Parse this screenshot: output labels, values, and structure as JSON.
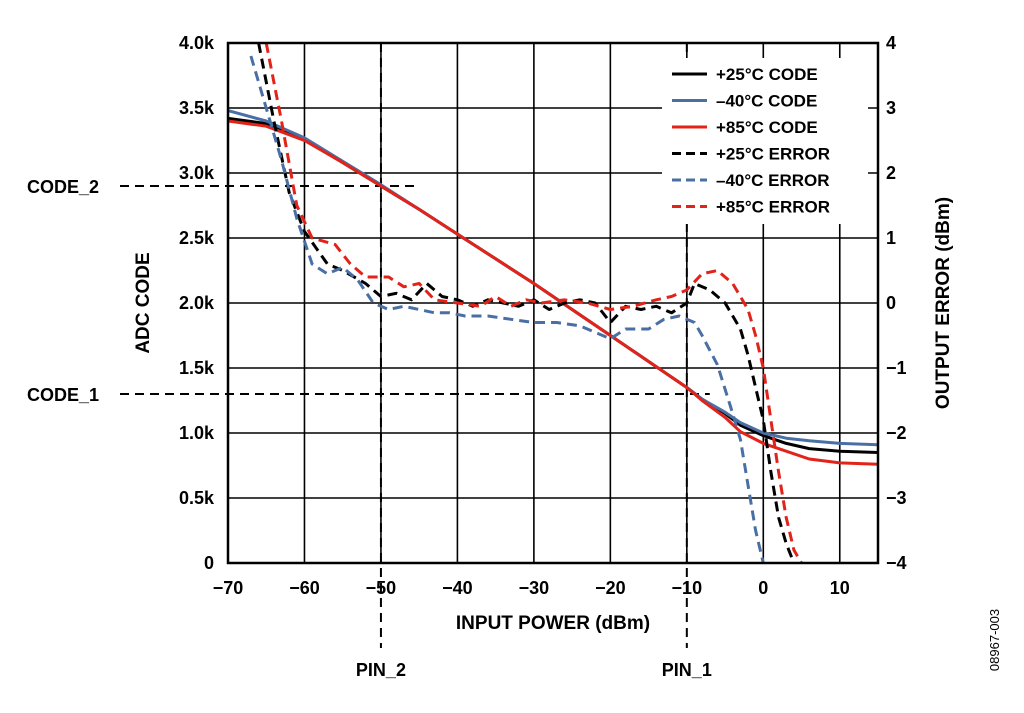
{
  "chart_data": {
    "type": "line",
    "xlabel": "INPUT POWER (dBm)",
    "ylabel_left": "ADC CODE",
    "ylabel_right": "OUTPUT ERROR (dBm)",
    "x_range": [
      -70,
      15
    ],
    "y_left_range": [
      0,
      4000
    ],
    "y_right_range": [
      -4,
      4
    ],
    "x_ticks": [
      {
        "v": -70,
        "label": "−70"
      },
      {
        "v": -60,
        "label": "−60"
      },
      {
        "v": -50,
        "label": "−50"
      },
      {
        "v": -40,
        "label": "−40"
      },
      {
        "v": -30,
        "label": "−30"
      },
      {
        "v": -20,
        "label": "−20"
      },
      {
        "v": -10,
        "label": "−10"
      },
      {
        "v": 0,
        "label": "0"
      },
      {
        "v": 10,
        "label": "10"
      }
    ],
    "y_left_ticks": [
      {
        "v": 0,
        "label": "0"
      },
      {
        "v": 500,
        "label": "0.5k"
      },
      {
        "v": 1000,
        "label": "1.0k"
      },
      {
        "v": 1500,
        "label": "1.5k"
      },
      {
        "v": 2000,
        "label": "2.0k"
      },
      {
        "v": 2500,
        "label": "2.5k"
      },
      {
        "v": 3000,
        "label": "3.0k"
      },
      {
        "v": 3500,
        "label": "3.5k"
      },
      {
        "v": 4000,
        "label": "4.0k"
      }
    ],
    "y_right_ticks": [
      {
        "v": -4,
        "label": "−4"
      },
      {
        "v": -3,
        "label": "−3"
      },
      {
        "v": -2,
        "label": "−2"
      },
      {
        "v": -1,
        "label": "−1"
      },
      {
        "v": 0,
        "label": "0"
      },
      {
        "v": 1,
        "label": "1"
      },
      {
        "v": 2,
        "label": "2"
      },
      {
        "v": 3,
        "label": "3"
      },
      {
        "v": 4,
        "label": "4"
      }
    ],
    "grid": true,
    "legend_position": "top-right",
    "series": [
      {
        "name": "+25°C CODE",
        "axis": "left",
        "style": "solid",
        "color": "#000000",
        "points": [
          [
            -70,
            3420
          ],
          [
            -65,
            3380
          ],
          [
            -60,
            3260
          ],
          [
            -55,
            3080
          ],
          [
            -50,
            2900
          ],
          [
            -45,
            2720
          ],
          [
            -40,
            2530
          ],
          [
            -35,
            2340
          ],
          [
            -30,
            2150
          ],
          [
            -25,
            1950
          ],
          [
            -20,
            1750
          ],
          [
            -15,
            1550
          ],
          [
            -10,
            1350
          ],
          [
            -8,
            1260
          ],
          [
            -5,
            1150
          ],
          [
            -3,
            1060
          ],
          [
            0,
            980
          ],
          [
            3,
            920
          ],
          [
            6,
            880
          ],
          [
            10,
            860
          ],
          [
            15,
            850
          ]
        ]
      },
      {
        "name": "–40°C CODE",
        "axis": "left",
        "style": "solid",
        "color": "#4a6fa5",
        "points": [
          [
            -70,
            3480
          ],
          [
            -65,
            3400
          ],
          [
            -60,
            3270
          ],
          [
            -55,
            3090
          ],
          [
            -50,
            2910
          ],
          [
            -45,
            2720
          ],
          [
            -40,
            2530
          ],
          [
            -35,
            2340
          ],
          [
            -30,
            2150
          ],
          [
            -25,
            1950
          ],
          [
            -20,
            1750
          ],
          [
            -15,
            1550
          ],
          [
            -10,
            1350
          ],
          [
            -8,
            1260
          ],
          [
            -5,
            1160
          ],
          [
            -3,
            1080
          ],
          [
            0,
            1000
          ],
          [
            3,
            960
          ],
          [
            6,
            940
          ],
          [
            10,
            920
          ],
          [
            15,
            910
          ]
        ]
      },
      {
        "name": "+85°C CODE",
        "axis": "left",
        "style": "solid",
        "color": "#e2231a",
        "points": [
          [
            -70,
            3400
          ],
          [
            -65,
            3360
          ],
          [
            -60,
            3250
          ],
          [
            -55,
            3080
          ],
          [
            -50,
            2900
          ],
          [
            -45,
            2720
          ],
          [
            -40,
            2530
          ],
          [
            -35,
            2340
          ],
          [
            -30,
            2150
          ],
          [
            -25,
            1950
          ],
          [
            -20,
            1750
          ],
          [
            -15,
            1550
          ],
          [
            -10,
            1350
          ],
          [
            -8,
            1250
          ],
          [
            -5,
            1120
          ],
          [
            -3,
            1010
          ],
          [
            0,
            920
          ],
          [
            3,
            860
          ],
          [
            6,
            800
          ],
          [
            10,
            770
          ],
          [
            15,
            760
          ]
        ]
      },
      {
        "name": "+25°C ERROR",
        "axis": "right",
        "style": "dashed",
        "color": "#000000",
        "points": [
          [
            -66,
            4
          ],
          [
            -64,
            2.8
          ],
          [
            -62,
            1.7
          ],
          [
            -60,
            1.1
          ],
          [
            -57,
            0.6
          ],
          [
            -55,
            0.5
          ],
          [
            -52,
            0.3
          ],
          [
            -50,
            0.1
          ],
          [
            -48,
            0.15
          ],
          [
            -46,
            0.05
          ],
          [
            -44,
            0.3
          ],
          [
            -42,
            0.1
          ],
          [
            -40,
            0.05
          ],
          [
            -38,
            -0.05
          ],
          [
            -36,
            0.05
          ],
          [
            -34,
            0.0
          ],
          [
            -32,
            -0.05
          ],
          [
            -30,
            0.05
          ],
          [
            -28,
            -0.1
          ],
          [
            -26,
            0.0
          ],
          [
            -24,
            0.05
          ],
          [
            -22,
            0.0
          ],
          [
            -20,
            -0.3
          ],
          [
            -18,
            -0.05
          ],
          [
            -16,
            -0.1
          ],
          [
            -14,
            -0.05
          ],
          [
            -12,
            -0.15
          ],
          [
            -10,
            0.0
          ],
          [
            -9,
            0.3
          ],
          [
            -7,
            0.2
          ],
          [
            -5,
            0.0
          ],
          [
            -3,
            -0.4
          ],
          [
            -2,
            -0.8
          ],
          [
            -1,
            -1.3
          ],
          [
            0,
            -1.8
          ],
          [
            1,
            -2.6
          ],
          [
            2,
            -3.3
          ],
          [
            3,
            -3.7
          ],
          [
            4,
            -4.0
          ]
        ]
      },
      {
        "name": "–40°C ERROR",
        "axis": "right",
        "style": "dashed",
        "color": "#4a6fa5",
        "points": [
          [
            -67,
            3.8
          ],
          [
            -65,
            3.0
          ],
          [
            -63,
            2.2
          ],
          [
            -61,
            1.3
          ],
          [
            -59,
            0.6
          ],
          [
            -57,
            0.45
          ],
          [
            -55,
            0.55
          ],
          [
            -53,
            0.35
          ],
          [
            -51,
            0.0
          ],
          [
            -49,
            -0.1
          ],
          [
            -47,
            -0.05
          ],
          [
            -45,
            -0.1
          ],
          [
            -43,
            -0.15
          ],
          [
            -41,
            -0.15
          ],
          [
            -39,
            -0.2
          ],
          [
            -36,
            -0.2
          ],
          [
            -33,
            -0.25
          ],
          [
            -30,
            -0.3
          ],
          [
            -27,
            -0.3
          ],
          [
            -24,
            -0.35
          ],
          [
            -22,
            -0.45
          ],
          [
            -20,
            -0.55
          ],
          [
            -18,
            -0.4
          ],
          [
            -15,
            -0.4
          ],
          [
            -13,
            -0.25
          ],
          [
            -11,
            -0.2
          ],
          [
            -9,
            -0.3
          ],
          [
            -8,
            -0.5
          ],
          [
            -6,
            -0.95
          ],
          [
            -4,
            -1.7
          ],
          [
            -3,
            -2.1
          ],
          [
            -2,
            -2.8
          ],
          [
            -1,
            -3.5
          ],
          [
            0,
            -4.0
          ]
        ]
      },
      {
        "name": "+85°C ERROR",
        "axis": "right",
        "style": "dashed",
        "color": "#e2231a",
        "points": [
          [
            -65,
            4
          ],
          [
            -63,
            2.8
          ],
          [
            -61,
            1.5
          ],
          [
            -59,
            1.0
          ],
          [
            -56,
            0.9
          ],
          [
            -54,
            0.6
          ],
          [
            -52,
            0.4
          ],
          [
            -49,
            0.4
          ],
          [
            -47,
            0.25
          ],
          [
            -45,
            0.3
          ],
          [
            -43,
            0.05
          ],
          [
            -40,
            0.0
          ],
          [
            -37,
            -0.05
          ],
          [
            -35,
            0.1
          ],
          [
            -33,
            -0.05
          ],
          [
            -31,
            0.05
          ],
          [
            -29,
            0.0
          ],
          [
            -26,
            0.05
          ],
          [
            -23,
            0.0
          ],
          [
            -20,
            -0.1
          ],
          [
            -17,
            -0.05
          ],
          [
            -14,
            0.05
          ],
          [
            -12,
            0.1
          ],
          [
            -10,
            0.2
          ],
          [
            -8,
            0.45
          ],
          [
            -6,
            0.5
          ],
          [
            -4,
            0.3
          ],
          [
            -2,
            -0.1
          ],
          [
            -1,
            -0.5
          ],
          [
            0,
            -1.0
          ],
          [
            1,
            -1.8
          ],
          [
            2,
            -2.6
          ],
          [
            3,
            -3.3
          ],
          [
            4,
            -3.8
          ],
          [
            5,
            -4.0
          ]
        ]
      }
    ],
    "annotations": [
      {
        "label": "CODE_1",
        "type": "h-ref",
        "axis": "left",
        "value": 1300,
        "x_end": -7
      },
      {
        "label": "CODE_2",
        "type": "h-ref",
        "axis": "left",
        "value": 2900,
        "x_end": -45
      },
      {
        "label": "PIN_1",
        "type": "v-ref",
        "value": -10
      },
      {
        "label": "PIN_2",
        "type": "v-ref",
        "value": -50
      }
    ],
    "figure_id": "08967-003"
  }
}
